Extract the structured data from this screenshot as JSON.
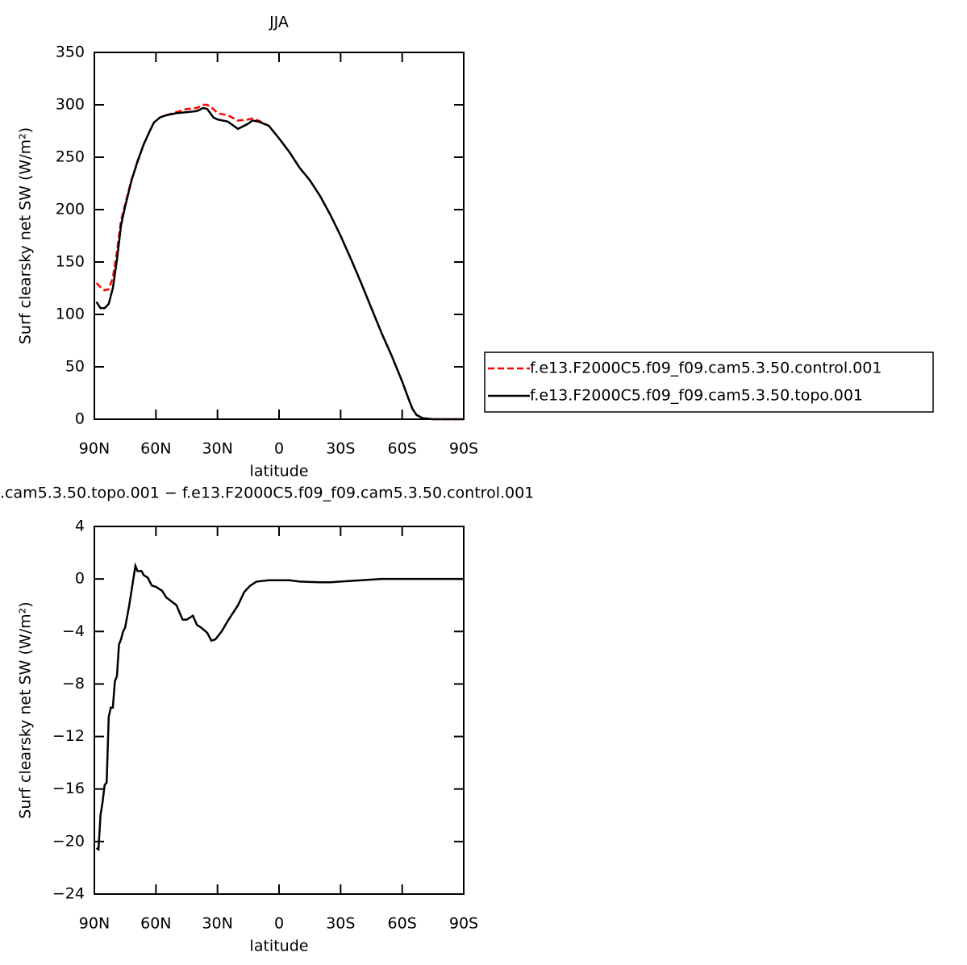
{
  "chart_data": [
    {
      "type": "line",
      "title": "JJA",
      "xlabel": "latitude",
      "ylabel": "Surf clearsky net SW (W/m²)",
      "x": [
        89,
        87,
        85,
        83,
        81,
        79,
        77,
        75,
        72,
        69,
        66,
        63,
        61,
        58,
        55,
        50,
        45,
        40,
        37,
        35,
        32,
        30,
        25,
        20,
        15,
        13,
        10,
        5,
        0,
        -5,
        -10,
        -15,
        -20,
        -25,
        -30,
        -35,
        -40,
        -45,
        -50,
        -55,
        -60,
        -63,
        -65,
        -67,
        -70,
        -75,
        -80,
        -90
      ],
      "series": [
        {
          "name": "f.e13.F2000C5.f09_f09.cam5.3.50.control.001",
          "color": "#ff0000",
          "dashed": true,
          "values": [
            130,
            126,
            123,
            124,
            135,
            160,
            190,
            205,
            228,
            245,
            262,
            275,
            283,
            288,
            290,
            293,
            296,
            297,
            300,
            300,
            296,
            292,
            290,
            285,
            286,
            287,
            285,
            280,
            268,
            255,
            240,
            228,
            213,
            195,
            175,
            153,
            130,
            106,
            82,
            60,
            36,
            20,
            10,
            4,
            1,
            0,
            0,
            0
          ]
        },
        {
          "name": "f.e13.F2000C5.f09_f09.cam5.3.50.topo.001",
          "color": "#000000",
          "dashed": false,
          "values": [
            112,
            106,
            106,
            110,
            125,
            152,
            185,
            203,
            227,
            246,
            262,
            275,
            283,
            288,
            290,
            292,
            293,
            294,
            297,
            296,
            288,
            286,
            284,
            277,
            282,
            285,
            284,
            280,
            268,
            255,
            240,
            228,
            213,
            195,
            175,
            153,
            130,
            106,
            82,
            60,
            36,
            20,
            10,
            4,
            1,
            0,
            0,
            0
          ]
        }
      ],
      "xlim": [
        90,
        -90
      ],
      "xticks": [
        {
          "value": 90,
          "label": "90N"
        },
        {
          "value": 60,
          "label": "60N"
        },
        {
          "value": 30,
          "label": "30N"
        },
        0,
        {
          "value": -30,
          "label": "30S"
        },
        {
          "value": -60,
          "label": "60S"
        },
        {
          "value": -90,
          "label": "90S"
        }
      ],
      "ylim": [
        0,
        350
      ],
      "yticks": [
        0,
        50,
        100,
        150,
        200,
        250,
        300,
        350
      ],
      "legend": "right"
    },
    {
      "type": "line",
      "title": ".cam5.3.50.topo.001 − f.e13.F2000C5.f09_f09.cam5.3.50.control.001",
      "xlabel": "latitude",
      "ylabel": "Surf clearsky net SW (W/m²)",
      "x": [
        89,
        88,
        87,
        86,
        85,
        84,
        83,
        82,
        81,
        80,
        79,
        78,
        77,
        76,
        75,
        73,
        71,
        70,
        69,
        67,
        66,
        64,
        62,
        60,
        57,
        55,
        50,
        47,
        45,
        42,
        40,
        38,
        35,
        33,
        31,
        28,
        25,
        20,
        17,
        14,
        11,
        5,
        0,
        -5,
        -10,
        -20,
        -25,
        -30,
        -40,
        -50,
        -90
      ],
      "values": [
        -20.5,
        -20.6,
        -18,
        -17,
        -15.7,
        -15.5,
        -10.5,
        -9.8,
        -9.8,
        -7.8,
        -7.4,
        -5,
        -4.6,
        -4,
        -3.7,
        -2,
        0,
        1,
        0.6,
        0.6,
        0.3,
        0.1,
        -0.5,
        -0.6,
        -0.9,
        -1.4,
        -2,
        -3.1,
        -3.1,
        -2.8,
        -3.5,
        -3.7,
        -4.1,
        -4.7,
        -4.6,
        -4,
        -3.2,
        -2,
        -1,
        -0.5,
        -0.2,
        -0.1,
        -0.1,
        -0.1,
        -0.2,
        -0.25,
        -0.25,
        -0.2,
        -0.1,
        0,
        0
      ],
      "color": "#000000",
      "xlim": [
        90,
        -90
      ],
      "xticks": [
        {
          "value": 90,
          "label": "90N"
        },
        {
          "value": 60,
          "label": "60N"
        },
        {
          "value": 30,
          "label": "30N"
        },
        0,
        {
          "value": -30,
          "label": "30S"
        },
        {
          "value": -60,
          "label": "60S"
        },
        {
          "value": -90,
          "label": "90S"
        }
      ],
      "ylim": [
        -24,
        4
      ],
      "yticks": [
        4,
        0,
        {
          "value": -4,
          "label": "−4"
        },
        {
          "value": -8,
          "label": "−8"
        },
        {
          "value": -12,
          "label": "−12"
        },
        {
          "value": -16,
          "label": "−16"
        },
        {
          "value": -20,
          "label": "−20"
        },
        {
          "value": -24,
          "label": "−24"
        }
      ]
    }
  ]
}
